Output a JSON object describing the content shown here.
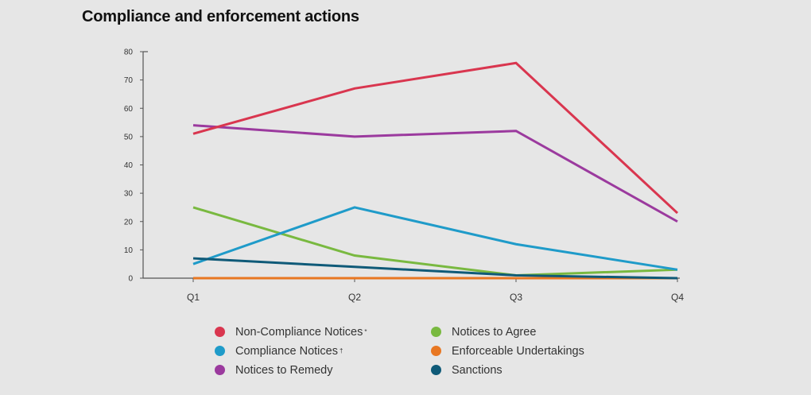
{
  "chart_data": {
    "type": "line",
    "title": "Compliance and enforcement actions",
    "xlabel": "",
    "ylabel": "",
    "categories": [
      "Q1",
      "Q2",
      "Q3",
      "Q4"
    ],
    "ylim": [
      0,
      80
    ],
    "yticks": [
      0,
      10,
      20,
      30,
      40,
      50,
      60,
      70,
      80
    ],
    "grid": false,
    "legend_position": "bottom",
    "series": [
      {
        "name": "Non-Compliance Notices",
        "superscript": "*",
        "color": "#d9364f",
        "values": [
          51,
          67,
          76,
          23
        ]
      },
      {
        "name": "Compliance Notices",
        "superscript": "†",
        "color": "#1f9bc9",
        "values": [
          5,
          25,
          12,
          3
        ]
      },
      {
        "name": "Notices to Remedy",
        "superscript": "",
        "color": "#9b3a9e",
        "values": [
          54,
          50,
          52,
          20
        ]
      },
      {
        "name": "Notices to Agree",
        "superscript": "",
        "color": "#79b940",
        "values": [
          25,
          8,
          1,
          3
        ]
      },
      {
        "name": "Enforceable Undertakings",
        "superscript": "",
        "color": "#e87722",
        "values": [
          0,
          0,
          0,
          0
        ]
      },
      {
        "name": "Sanctions",
        "superscript": "",
        "color": "#0f5a78",
        "values": [
          7,
          4,
          1,
          0
        ]
      }
    ],
    "legend_order": [
      0,
      3,
      1,
      4,
      2,
      5
    ]
  }
}
